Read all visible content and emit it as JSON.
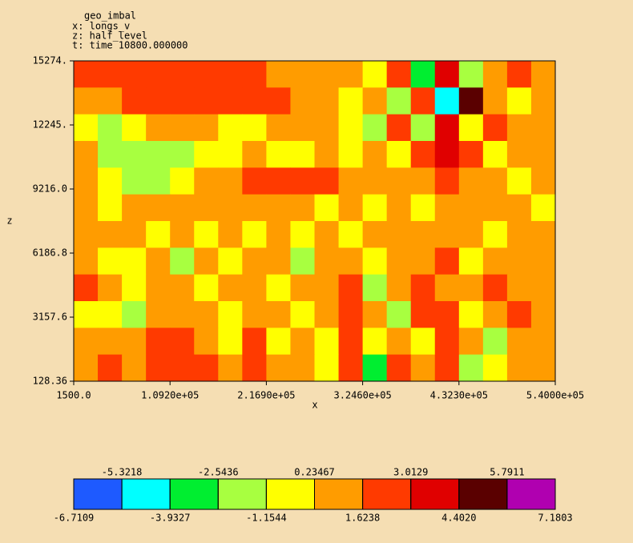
{
  "chart_data": {
    "type": "heatmap",
    "title": "geo_imbal",
    "annotations": [
      "x: longs_v",
      "z: half_level",
      "t: time 10800.000000"
    ],
    "xlabel": "x",
    "ylabel": "z",
    "xlim": [
      1500,
      540000
    ],
    "xticks": [
      {
        "value": 1500,
        "label": "1500.0"
      },
      {
        "value": 109200,
        "label": "1.0920e+05"
      },
      {
        "value": 216900,
        "label": "2.1690e+05"
      },
      {
        "value": 324600,
        "label": "3.2460e+05"
      },
      {
        "value": 432300,
        "label": "4.3230e+05"
      },
      {
        "value": 540000,
        "label": "5.4000e+05"
      }
    ],
    "ylim": [
      128.36,
      15274
    ],
    "yticks": [
      128.36,
      3157.6,
      6186.8,
      {
        "value": 9216,
        "label": "9216.0"
      },
      {
        "value": 12245,
        "label": "12245."
      },
      {
        "value": 15274,
        "label": "15274."
      }
    ],
    "values": [
      [
        1.8,
        2.0,
        2.2,
        2.0,
        1.9,
        2.1,
        2.0,
        1.8,
        1.5,
        1.2,
        0.8,
        1.5,
        -0.5,
        2.5,
        -3,
        3.5,
        -2,
        1,
        2,
        1.5
      ],
      [
        0.5,
        1,
        2.2,
        2.4,
        2.3,
        2.2,
        2.1,
        2,
        1.8,
        1.4,
        1,
        -0.8,
        1.2,
        -1.5,
        3,
        -4,
        4.5,
        0.5,
        -1,
        1.2
      ],
      [
        0.2,
        -1.5,
        -0.5,
        0.3,
        0.8,
        0.5,
        -0.8,
        -0.5,
        0.5,
        0.8,
        1,
        0.2,
        -1.2,
        2,
        -2,
        3.8,
        -1,
        2.5,
        0.8,
        0.5
      ],
      [
        0.3,
        -2,
        -2.3,
        -1.8,
        -1.2,
        -0.5,
        0.2,
        0.5,
        -0.3,
        0.2,
        0.6,
        -0.5,
        1.5,
        -1,
        2.5,
        3.2,
        2,
        -0.5,
        1,
        0.3
      ],
      [
        0.5,
        0,
        -1.2,
        -1.5,
        0.2,
        0.8,
        1.5,
        2.0,
        2.0,
        2.0,
        1.8,
        1.2,
        0.5,
        1.2,
        0.8,
        2.5,
        1,
        0.4,
        -0.8,
        0.6
      ],
      [
        0.4,
        0.2,
        0.6,
        1,
        0.3,
        0.8,
        1.2,
        1.5,
        0.5,
        1.1,
        0.2,
        1.3,
        -0.5,
        1,
        0.2,
        0.8,
        0.4,
        1.5,
        0.3,
        -0.5
      ],
      [
        0.8,
        0.5,
        0.3,
        -0.4,
        0.5,
        -0.8,
        0.6,
        0.2,
        1.2,
        -0.6,
        0.5,
        -0.3,
        1.4,
        0.3,
        0.9,
        1.2,
        0.5,
        -0.5,
        1.2,
        0.6
      ],
      [
        0.5,
        -0.8,
        0.2,
        0.8,
        -1.2,
        0.5,
        -0.3,
        1,
        0.4,
        -1.5,
        0.8,
        1.6,
        -0.5,
        1.2,
        0.3,
        1.8,
        -0.3,
        0.8,
        1.5,
        0.8
      ],
      [
        1.8,
        0.4,
        -0.6,
        1,
        0.3,
        -1,
        0.8,
        1.2,
        -0.4,
        0.6,
        1.5,
        2,
        -1.8,
        1,
        2.2,
        1.2,
        0.4,
        2,
        1.2,
        1
      ],
      [
        0.2,
        -0.5,
        -1.2,
        0.4,
        1.2,
        0.6,
        -0.5,
        1.5,
        0.3,
        -1,
        0.8,
        2.2,
        0.5,
        -2.5,
        2,
        2.4,
        -0.5,
        1.6,
        2.2,
        0.5
      ],
      [
        0.8,
        1.5,
        0.5,
        1.8,
        2,
        1.4,
        0.2,
        1.8,
        -0.8,
        0.6,
        -0.4,
        1.8,
        0.2,
        1.5,
        -0.3,
        2.3,
        0.5,
        -1.2,
        1.5,
        1
      ],
      [
        1.6,
        2,
        1.2,
        2.2,
        2.3,
        1.8,
        1,
        2,
        0.5,
        1.5,
        -0.5,
        2.1,
        -3,
        1.8,
        0.5,
        2.5,
        -2,
        -0.8,
        1.2,
        0.8
      ]
    ],
    "colorbar": {
      "ticks": [
        -6.7109,
        -5.3218,
        -3.9327,
        -2.5436,
        -1.1544,
        0.23467,
        1.6238,
        3.0129,
        {
          "value": 4.402,
          "label": "4.4020"
        },
        5.7911,
        7.1803
      ],
      "colors": [
        "#1e5aff",
        "#00ffff",
        "#00ee30",
        "#a8ff40",
        "#ffff00",
        "#ff9c00",
        "#ff3a00",
        "#e00000",
        "#5a0000",
        "#b000b0"
      ]
    }
  }
}
